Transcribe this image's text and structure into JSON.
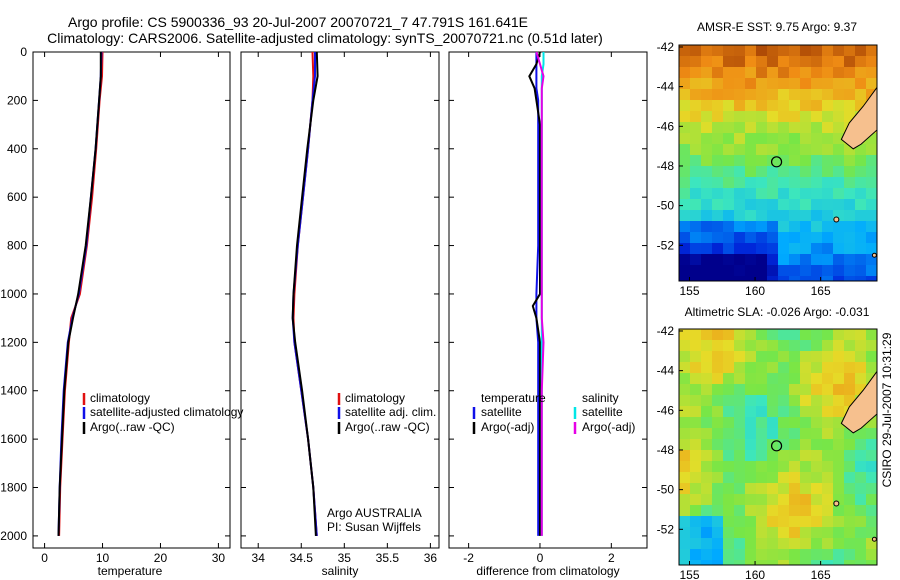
{
  "header": {
    "title_line1": "Argo profile: CS 5900336_93 20-Jul-2007 20070721_7 47.791S 161.641E",
    "title_line2": "Climatology: CARS2006. Satellite-adjusted climatology: synTS_20070721.nc (0.51d later)"
  },
  "credit": {
    "program": "Argo AUSTRALIA",
    "pi": "PI: Susan Wijffels",
    "stamp": "CSIRO 29-Jul-2007 10:31:29"
  },
  "colors": {
    "climatology": "#e01010",
    "satellite": "#1010e8",
    "argo": "#000000",
    "sal_satellite": "#00e6e6",
    "sal_argo": "#e600e6",
    "coast": "#000000",
    "land": "#f6c08e"
  },
  "chart_data": [
    {
      "type": "line",
      "id": "temperature",
      "xlabel": "temperature",
      "ylabel": "",
      "xlim": [
        -2,
        32
      ],
      "ylim": [
        2050,
        0
      ],
      "xticks": [
        0,
        10,
        20,
        30
      ],
      "xtick_labels": [
        "0",
        "10",
        "20",
        "30"
      ],
      "yticks": [
        0,
        200,
        400,
        600,
        800,
        1000,
        1200,
        1400,
        1600,
        1800,
        2000
      ],
      "ytick_labels": [
        "0",
        "200",
        "400",
        "600",
        "800",
        "1000",
        "1200",
        "1400",
        "1600",
        "1800",
        "2000"
      ],
      "legend": [
        "climatology",
        "satellite-adjusted climatology",
        "Argo(..raw -QC)"
      ],
      "depth": [
        0,
        100,
        200,
        400,
        600,
        800,
        1000,
        1100,
        1200,
        1400,
        1600,
        1800,
        2000
      ],
      "series": [
        {
          "name": "climatology",
          "color_key": "climatology",
          "values": [
            10.0,
            9.9,
            9.5,
            8.9,
            8.2,
            7.3,
            6.1,
            4.6,
            4.2,
            3.5,
            3.1,
            2.7,
            2.5
          ]
        },
        {
          "name": "satellite-adjusted climatology",
          "color_key": "satellite",
          "values": [
            9.8,
            9.7,
            9.4,
            8.8,
            8.0,
            7.2,
            5.9,
            4.8,
            4.0,
            3.3,
            2.9,
            2.6,
            2.4
          ]
        },
        {
          "name": "Argo(..raw -QC)",
          "color_key": "argo",
          "values": [
            9.7,
            9.7,
            9.4,
            8.8,
            8.0,
            7.1,
            5.8,
            4.9,
            4.1,
            3.4,
            3.0,
            2.6,
            2.4
          ]
        }
      ]
    },
    {
      "type": "line",
      "id": "salinity",
      "xlabel": "salinity",
      "ylabel": "",
      "xlim": [
        33.8,
        36.1
      ],
      "ylim": [
        2050,
        0
      ],
      "xticks": [
        34,
        34.5,
        35,
        35.5,
        36
      ],
      "xtick_labels": [
        "34",
        "34.5",
        "35",
        "35.5",
        "36"
      ],
      "legend": [
        "climatology",
        "satellite adj. clim.",
        "Argo(..raw -QC)"
      ],
      "depth": [
        0,
        100,
        200,
        400,
        600,
        800,
        1000,
        1100,
        1200,
        1400,
        1600,
        1800,
        2000
      ],
      "series": [
        {
          "name": "climatology",
          "color_key": "climatology",
          "values": [
            34.63,
            34.64,
            34.63,
            34.58,
            34.52,
            34.46,
            34.42,
            34.41,
            34.42,
            34.5,
            34.58,
            34.64,
            34.68
          ]
        },
        {
          "name": "satellite adj. clim.",
          "color_key": "satellite",
          "values": [
            34.66,
            34.66,
            34.63,
            34.58,
            34.52,
            34.46,
            34.41,
            34.4,
            34.42,
            34.5,
            34.58,
            34.64,
            34.68
          ]
        },
        {
          "name": "Argo(..raw -QC)",
          "color_key": "argo",
          "values": [
            34.68,
            34.69,
            34.64,
            34.57,
            34.51,
            34.45,
            34.41,
            34.4,
            34.43,
            34.51,
            34.58,
            34.64,
            34.67
          ]
        }
      ]
    },
    {
      "type": "line",
      "id": "difference",
      "xlabel": "difference from climatology",
      "ylabel": "",
      "xlim": [
        -2.55,
        3.0
      ],
      "ylim": [
        2050,
        0
      ],
      "xticks": [
        -2,
        0,
        2
      ],
      "xtick_labels": [
        "-2",
        "0",
        "2"
      ],
      "legend_titles": [
        "temperature",
        "salinity"
      ],
      "legend": [
        "satellite",
        "Argo(-adj)",
        "satellite",
        "Argo(-adj)"
      ],
      "depth": [
        0,
        50,
        100,
        150,
        200,
        300,
        400,
        600,
        800,
        1000,
        1050,
        1100,
        1200,
        1400,
        1600,
        1800,
        2000
      ],
      "series": [
        {
          "name": "temperature satellite",
          "color_key": "satellite",
          "values": [
            -0.1,
            -0.1,
            -0.1,
            -0.1,
            -0.05,
            -0.05,
            -0.05,
            -0.05,
            -0.05,
            -0.1,
            -0.1,
            -0.1,
            -0.05,
            -0.05,
            -0.05,
            -0.05,
            -0.05
          ]
        },
        {
          "name": "temperature Argo(-adj)",
          "color_key": "argo",
          "values": [
            0.0,
            -0.1,
            -0.3,
            -0.15,
            -0.1,
            0.0,
            0.0,
            0.0,
            0.0,
            0.0,
            -0.2,
            -0.1,
            0.0,
            0.0,
            0.0,
            0.0,
            0.0
          ]
        },
        {
          "name": "salinity satellite",
          "color_key": "sal_satellite",
          "values": [
            0.1,
            0.1,
            0.05,
            0.05,
            0.05,
            0.05,
            0.05,
            0.05,
            0.05,
            0.05,
            0.05,
            0.05,
            0.05,
            0.05,
            0.05,
            0.05,
            0.05
          ]
        },
        {
          "name": "salinity Argo(-adj)",
          "color_key": "sal_argo",
          "values": [
            -0.1,
            0.0,
            0.1,
            0.05,
            0.05,
            0.05,
            0.05,
            0.05,
            0.05,
            0.05,
            0.05,
            0.05,
            0.1,
            0.05,
            0.05,
            0.05,
            0.05
          ]
        }
      ]
    },
    {
      "type": "heatmap",
      "id": "sst_map",
      "title": "AMSR-E SST: 9.75  Argo: 9.37",
      "xlim": [
        154.2,
        169.3
      ],
      "ylim": [
        -53.8,
        -41.9
      ],
      "xticks": [
        155,
        160,
        165
      ],
      "xtick_labels": [
        "155",
        "160",
        "165"
      ],
      "yticks": [
        -42,
        -44,
        -46,
        -48,
        -50,
        -52
      ],
      "ytick_labels": [
        "-42",
        "-44",
        "-46",
        "-48",
        "-50",
        "-52"
      ],
      "profile_location": {
        "lon": 161.641,
        "lat": -47.791
      }
    },
    {
      "type": "heatmap",
      "id": "sla_map",
      "title": "Altimetric SLA: -0.026  Argo: -0.031",
      "xlim": [
        154.2,
        169.3
      ],
      "ylim": [
        -53.8,
        -41.9
      ],
      "xticks": [
        155,
        160,
        165
      ],
      "xtick_labels": [
        "155",
        "160",
        "165"
      ],
      "yticks": [
        -42,
        -44,
        -46,
        -48,
        -50,
        -52
      ],
      "ytick_labels": [
        "-42",
        "-44",
        "-46",
        "-48",
        "-50",
        "-52"
      ],
      "profile_location": {
        "lon": 161.641,
        "lat": -47.791
      }
    }
  ]
}
